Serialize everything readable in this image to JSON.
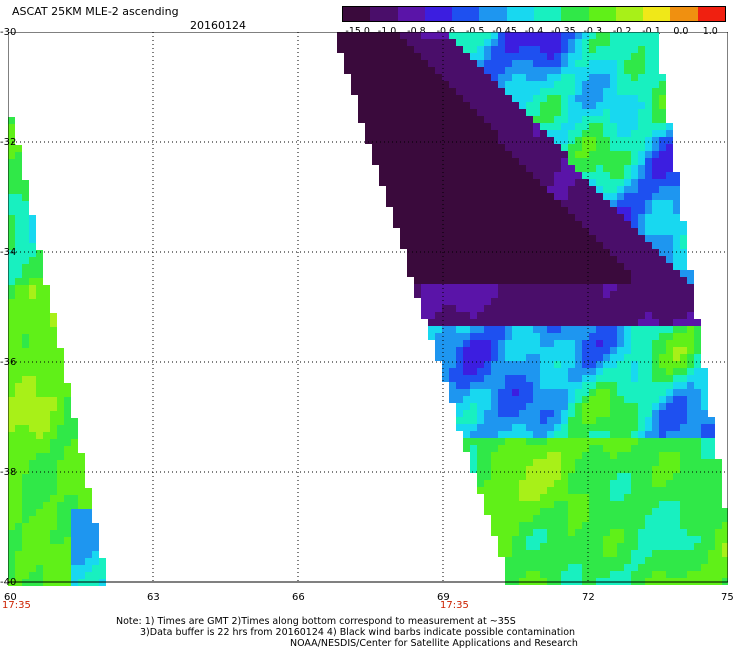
{
  "header": {
    "title": "ASCAT 25KM MLE-2 ascending",
    "date": "20160124"
  },
  "colorbar": {
    "labels": [
      "-15.0",
      "-1.0",
      "-0.8",
      "-0.6",
      "-0.5",
      "-0.45",
      "-0.4",
      "-0.35",
      "-0.3",
      "-0.2",
      "-0.1",
      "0.0",
      "1.0"
    ],
    "colors": [
      "#3a0a3c",
      "#4a0e6a",
      "#5a14a8",
      "#3c1ee0",
      "#1e50f0",
      "#1e96f0",
      "#18d8f0",
      "#18f0c0",
      "#30e848",
      "#60f018",
      "#a8f018",
      "#f0e818",
      "#f09010",
      "#f02010"
    ]
  },
  "axes": {
    "x_ticks": [
      "60",
      "63",
      "66",
      "69",
      "72",
      "75"
    ],
    "y_ticks": [
      "-30",
      "-32",
      "-34",
      "-36",
      "-38",
      "-40"
    ],
    "time_labels": [
      "17:35",
      "17:35"
    ]
  },
  "notes": {
    "line1": "Note: 1) Times are GMT 2)Times along bottom correspond to measurement at ~35S",
    "line2": "3)Data buffer is 22 hrs from 20160124 4) Black wind barbs indicate possible contamination",
    "line3": "NOAA/NESDIS/Center for Satellite Applications and Research"
  },
  "map": {
    "lon_range": [
      60,
      75
    ],
    "lat_range": [
      -40,
      -30
    ],
    "grid": true
  }
}
